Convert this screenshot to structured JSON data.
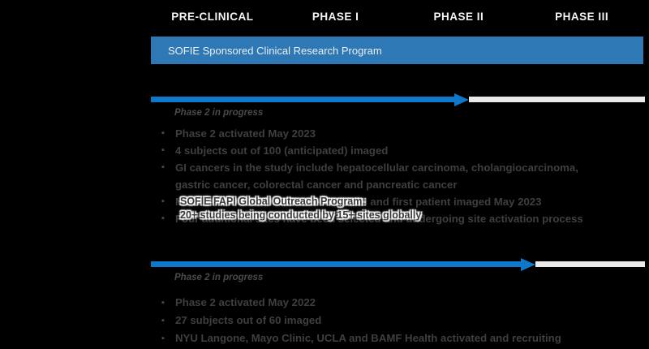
{
  "phases": [
    "PRE-CLINICAL",
    "PHASE I",
    "PHASE II",
    "PHASE III"
  ],
  "banner": {
    "title": "SOFIE Sponsored Clinical Research Program"
  },
  "colors": {
    "background": "#000000",
    "banner_blue": "#2E78B5",
    "arrow_blue": "#0F79C9",
    "track_gray": "#E9E9E9",
    "text_gray": "#3F3F3F"
  },
  "programs": [
    {
      "status_label": "Phase 2 in progress",
      "progress_pct": 64,
      "bullets": [
        [
          "Phase 2 activated May 2023"
        ],
        [
          "4 subjects out of 100 (anticipated) imaged"
        ],
        [
          "GI cancers in the study include hepatocellular carcinoma, cholangiocarcinoma,",
          "gastric cancer, colorectal cancer and pancreatic cancer"
        ],
        [
          "MGH as the first clinical site activated and first patient imaged May 2023"
        ],
        [
          "Four additional sites have been selected and undergoing site activation process"
        ]
      ]
    },
    {
      "status_label": "Phase 2 in progress",
      "progress_pct": 78,
      "bullets": [
        [
          "Phase 2 activated May 2022"
        ],
        [
          "27 subjects out of 60 imaged"
        ],
        [
          "NYU Langone, Mayo Clinic, UCLA and BAMF Health activated and recruiting"
        ]
      ]
    }
  ],
  "overlay": {
    "title": "SOFIE FAPI Global Outreach Program:",
    "subtitle": "20+ studies being conducted by 15+ sites globally"
  }
}
